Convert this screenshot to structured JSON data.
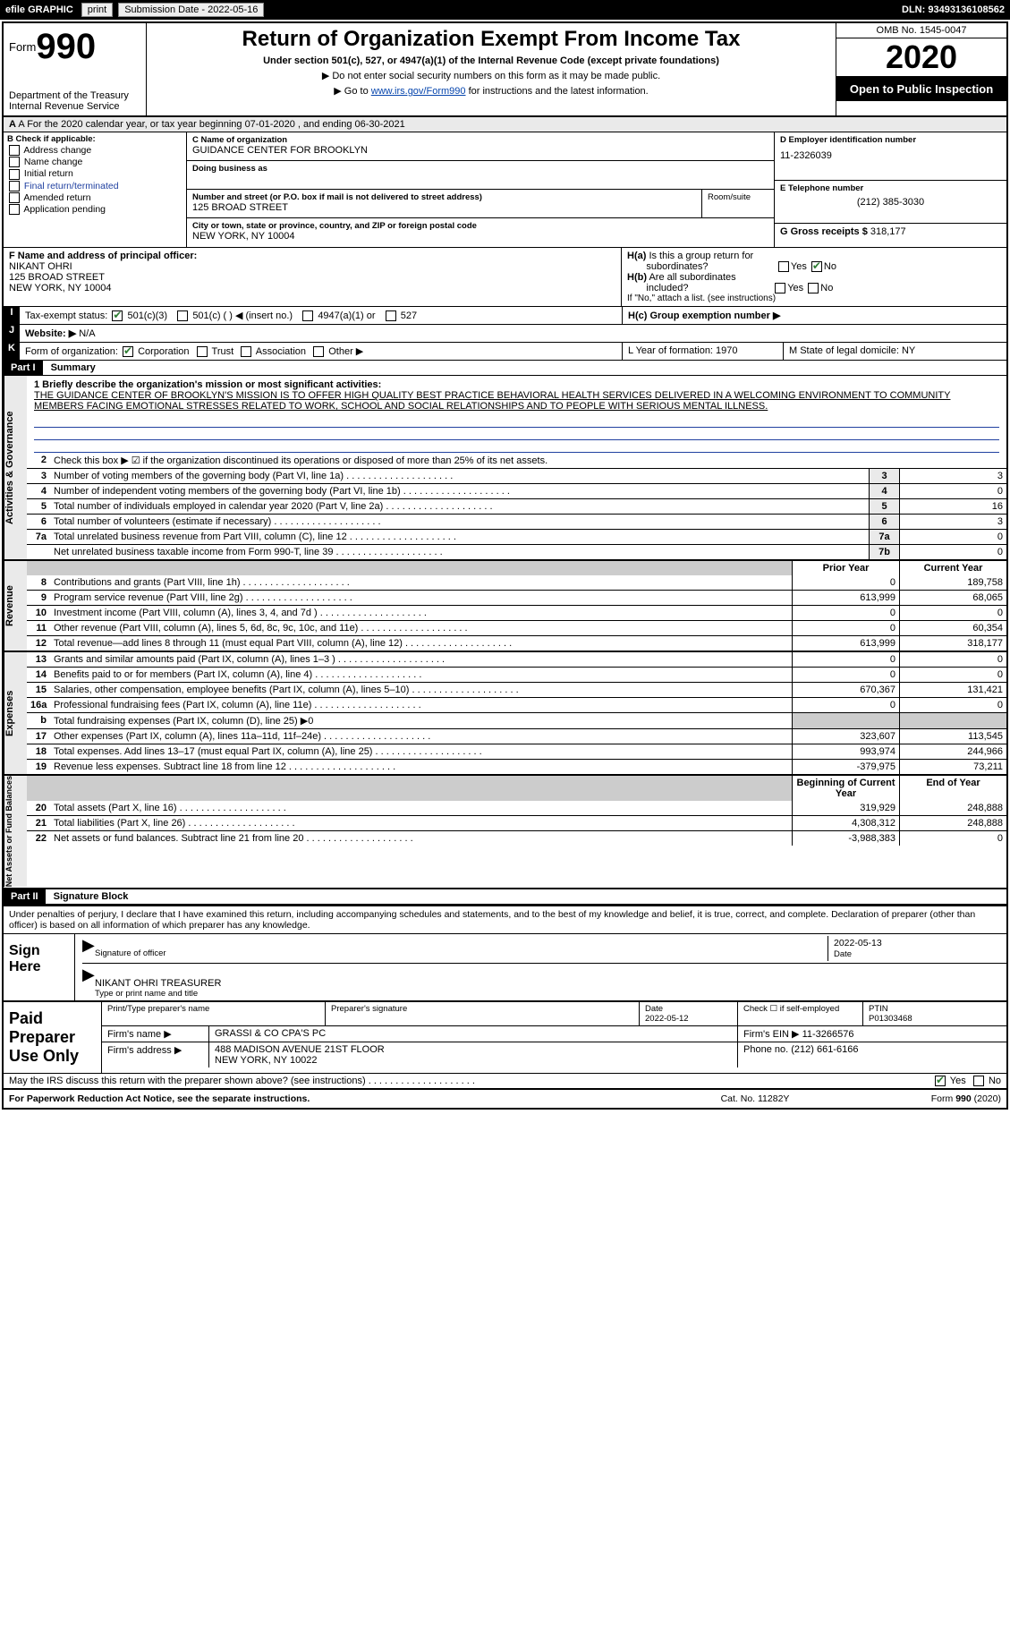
{
  "topbar": {
    "efile": "efile GRAPHIC",
    "print": "print",
    "subdate_label": "Submission Date - 2022-05-16",
    "dln": "DLN: 93493136108562"
  },
  "header": {
    "form_label": "Form",
    "form_no": "990",
    "title": "Return of Organization Exempt From Income Tax",
    "subtitle": "Under section 501(c), 527, or 4947(a)(1) of the Internal Revenue Code (except private foundations)",
    "note1": "▶ Do not enter social security numbers on this form as it may be made public.",
    "note2_pre": "▶ Go to ",
    "note2_link": "www.irs.gov/Form990",
    "note2_post": " for instructions and the latest information.",
    "dept": "Department of the Treasury\nInternal Revenue Service",
    "omb": "OMB No. 1545-0047",
    "year": "2020",
    "opub": "Open to Public Inspection"
  },
  "period": "A For the 2020 calendar year, or tax year beginning 07-01-2020    , and ending 06-30-2021",
  "boxB": {
    "head": "B Check if applicable:",
    "items": [
      "Address change",
      "Name change",
      "Initial return",
      "Final return/terminated",
      "Amended return",
      "Application pending"
    ],
    "app_checked": false
  },
  "boxC": {
    "name_label": "C Name of organization",
    "name": "GUIDANCE CENTER FOR BROOKLYN",
    "dba_label": "Doing business as",
    "addr_label": "Number and street (or P.O. box if mail is not delivered to street address)",
    "room_label": "Room/suite",
    "addr": "125 BROAD STREET",
    "city_label": "City or town, state or province, country, and ZIP or foreign postal code",
    "city": "NEW YORK, NY  10004"
  },
  "boxD": {
    "label": "D Employer identification number",
    "val": "11-2326039"
  },
  "boxE": {
    "label": "E Telephone number",
    "val": "(212) 385-3030"
  },
  "boxG": {
    "label": "G Gross receipts $",
    "val": "318,177"
  },
  "boxF": {
    "label": "F  Name and address of principal officer:",
    "name": "NIKANT OHRI",
    "addr1": "125 BROAD STREET",
    "addr2": "NEW YORK, NY  10004"
  },
  "boxH": {
    "a": "H(a)  Is this a group return for subordinates?",
    "b": "H(b)  Are all subordinates included?",
    "note": "If \"No,\" attach a list. (see instructions)",
    "c": "H(c)  Group exemption number ▶",
    "yes": "Yes",
    "no": "No"
  },
  "taxstat": {
    "label": "Tax-exempt status:",
    "i": "I"
  },
  "taxopts": [
    "501(c)(3)",
    "501(c) (  ) ◀ (insert no.)",
    "4947(a)(1) or",
    "527"
  ],
  "website": {
    "j": "J",
    "label": "Website: ▶",
    "val": "N/A"
  },
  "kform": {
    "k": "K",
    "label": "Form of organization:",
    "opts": [
      "Corporation",
      "Trust",
      "Association",
      "Other ▶"
    ],
    "l": "L Year of formation: 1970",
    "m": "M State of legal domicile: NY"
  },
  "part1": {
    "hdr": "Part I",
    "title": "Summary"
  },
  "sidetabs": {
    "ag": "Activities & Governance",
    "rev": "Revenue",
    "exp": "Expenses",
    "net": "Net Assets or Fund Balances"
  },
  "mission": {
    "label": "1  Briefly describe the organization's mission or most significant activities:",
    "text": "THE GUIDANCE CENTER OF BROOKLYN'S MISSION IS TO OFFER HIGH QUALITY BEST PRACTICE BEHAVIORAL HEALTH SERVICES DELIVERED IN A WELCOMING ENVIRONMENT TO COMMUNITY MEMBERS FACING EMOTIONAL STRESSES RELATED TO WORK, SCHOOL AND SOCIAL RELATIONSHIPS AND TO PEOPLE WITH SERIOUS MENTAL ILLNESS."
  },
  "ag_lines": [
    {
      "n": "2",
      "d": "Check this box ▶ ☑ if the organization discontinued its operations or disposed of more than 25% of its net assets."
    },
    {
      "n": "3",
      "d": "Number of voting members of the governing body (Part VI, line 1a)",
      "nb": "3",
      "v": "3"
    },
    {
      "n": "4",
      "d": "Number of independent voting members of the governing body (Part VI, line 1b)",
      "nb": "4",
      "v": "0"
    },
    {
      "n": "5",
      "d": "Total number of individuals employed in calendar year 2020 (Part V, line 2a)",
      "nb": "5",
      "v": "16"
    },
    {
      "n": "6",
      "d": "Total number of volunteers (estimate if necessary)",
      "nb": "6",
      "v": "3"
    },
    {
      "n": "7a",
      "d": "Total unrelated business revenue from Part VIII, column (C), line 12",
      "nb": "7a",
      "v": "0"
    },
    {
      "n": "",
      "d": "Net unrelated business taxable income from Form 990-T, line 39",
      "nb": "7b",
      "v": "0"
    }
  ],
  "colhdr": {
    "prior": "Prior Year",
    "curr": "Current Year"
  },
  "rev_lines": [
    {
      "n": "8",
      "d": "Contributions and grants (Part VIII, line 1h)",
      "p": "0",
      "c": "189,758"
    },
    {
      "n": "9",
      "d": "Program service revenue (Part VIII, line 2g)",
      "p": "613,999",
      "c": "68,065"
    },
    {
      "n": "10",
      "d": "Investment income (Part VIII, column (A), lines 3, 4, and 7d )",
      "p": "0",
      "c": "0"
    },
    {
      "n": "11",
      "d": "Other revenue (Part VIII, column (A), lines 5, 6d, 8c, 9c, 10c, and 11e)",
      "p": "0",
      "c": "60,354"
    },
    {
      "n": "12",
      "d": "Total revenue—add lines 8 through 11 (must equal Part VIII, column (A), line 12)",
      "p": "613,999",
      "c": "318,177"
    }
  ],
  "exp_lines": [
    {
      "n": "13",
      "d": "Grants and similar amounts paid (Part IX, column (A), lines 1–3 )",
      "p": "0",
      "c": "0"
    },
    {
      "n": "14",
      "d": "Benefits paid to or for members (Part IX, column (A), line 4)",
      "p": "0",
      "c": "0"
    },
    {
      "n": "15",
      "d": "Salaries, other compensation, employee benefits (Part IX, column (A), lines 5–10)",
      "p": "670,367",
      "c": "131,421"
    },
    {
      "n": "16a",
      "d": "Professional fundraising fees (Part IX, column (A), line 11e)",
      "p": "0",
      "c": "0"
    },
    {
      "n": "b",
      "d": "Total fundraising expenses (Part IX, column (D), line 25) ▶0",
      "nofin": true
    },
    {
      "n": "17",
      "d": "Other expenses (Part IX, column (A), lines 11a–11d, 11f–24e)",
      "p": "323,607",
      "c": "113,545"
    },
    {
      "n": "18",
      "d": "Total expenses. Add lines 13–17 (must equal Part IX, column (A), line 25)",
      "p": "993,974",
      "c": "244,966"
    },
    {
      "n": "19",
      "d": "Revenue less expenses. Subtract line 18 from line 12",
      "p": "-379,975",
      "c": "73,211"
    }
  ],
  "net_hdr": {
    "p": "Beginning of Current Year",
    "c": "End of Year"
  },
  "net_lines": [
    {
      "n": "20",
      "d": "Total assets (Part X, line 16)",
      "p": "319,929",
      "c": "248,888"
    },
    {
      "n": "21",
      "d": "Total liabilities (Part X, line 26)",
      "p": "4,308,312",
      "c": "248,888"
    },
    {
      "n": "22",
      "d": "Net assets or fund balances. Subtract line 21 from line 20",
      "p": "-3,988,383",
      "c": "0"
    }
  ],
  "part2": {
    "hdr": "Part II",
    "title": "Signature Block"
  },
  "sigtext": "Under penalties of perjury, I declare that I have examined this return, including accompanying schedules and statements, and to the best of my knowledge and belief, it is true, correct, and complete. Declaration of preparer (other than officer) is based on all information of which preparer has any knowledge.",
  "sign": {
    "side": "Sign Here",
    "sig_label": "Signature of officer",
    "date": "2022-05-13",
    "date_label": "Date",
    "name": "NIKANT OHRI TREASURER",
    "name_label": "Type or print name and title"
  },
  "prep": {
    "side": "Paid Preparer Use Only",
    "h": [
      "Print/Type preparer's name",
      "Preparer's signature",
      "Date",
      "",
      "PTIN"
    ],
    "date": "2022-05-12",
    "chk": "Check ☐ if self-employed",
    "ptin": "P01303468",
    "firm_label": "Firm's name    ▶",
    "firm": "GRASSI & CO CPA'S PC",
    "ein_label": "Firm's EIN ▶",
    "ein": "11-3266576",
    "addr_label": "Firm's address ▶",
    "addr1": "488 MADISON AVENUE 21ST FLOOR",
    "addr2": "NEW YORK, NY  10022",
    "phone_label": "Phone no.",
    "phone": "(212) 661-6166"
  },
  "discuss": {
    "q": "May the IRS discuss this return with the preparer shown above? (see instructions)",
    "yes": "Yes",
    "no": "No"
  },
  "footer": {
    "l": "For Paperwork Reduction Act Notice, see the separate instructions.",
    "m": "Cat. No. 11282Y",
    "r": "Form 990 (2020)"
  }
}
